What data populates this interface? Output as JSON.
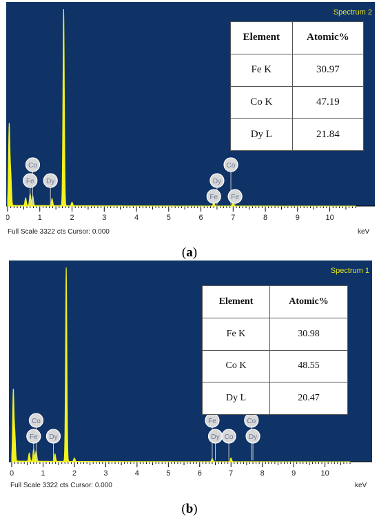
{
  "colors": {
    "plot_bg": "#0f3367",
    "trace": "#f2f21c",
    "spectrum_label": "#e6e61e",
    "element_badge": "#d8d8d8"
  },
  "chart_data": [
    {
      "type": "line",
      "panel_label": "a",
      "spectrum_label": "Spectrum 2",
      "footer_left": "Full Scale 3322 cts Cursor: 0.000",
      "xunit": "keV",
      "xlim": [
        0,
        10.8
      ],
      "xticks": [
        "0",
        "1",
        "2",
        "3",
        "4",
        "5",
        "6",
        "7",
        "8",
        "9",
        "10"
      ],
      "ylim": [
        0,
        3322
      ],
      "peaks": [
        {
          "x": 0.05,
          "y": 1350
        },
        {
          "x": 0.1,
          "y": 500
        },
        {
          "x": 0.56,
          "y": 130
        },
        {
          "x": 0.7,
          "y": 200
        },
        {
          "x": 0.78,
          "y": 170
        },
        {
          "x": 1.38,
          "y": 120
        },
        {
          "x": 1.74,
          "y": 3322
        },
        {
          "x": 2.0,
          "y": 60
        },
        {
          "x": 6.4,
          "y": 55
        },
        {
          "x": 7.0,
          "y": 60
        }
      ],
      "element_markers": [
        {
          "label": "Co",
          "x": 0.78,
          "level": 2
        },
        {
          "label": "Fe",
          "x": 0.7,
          "level": 1
        },
        {
          "label": "Dy",
          "x": 1.33,
          "level": 1
        },
        {
          "label": "Dy",
          "x": 6.5,
          "level": 1
        },
        {
          "label": "Co",
          "x": 6.93,
          "level": 2
        },
        {
          "label": "Fe",
          "x": 6.4,
          "level": 0
        },
        {
          "label": "Fe",
          "x": 7.06,
          "level": 0
        }
      ],
      "table": {
        "headers": [
          "Element",
          "Atomic%"
        ],
        "rows": [
          [
            "Fe K",
            "30.97"
          ],
          [
            "Co K",
            "47.19"
          ],
          [
            "Dy L",
            "21.84"
          ]
        ]
      }
    },
    {
      "type": "line",
      "panel_label": "b",
      "spectrum_label": "Spectrum 1",
      "footer_left": "Full Scale 3322 cts Cursor: 0.000",
      "xunit": "keV",
      "xlim": [
        0,
        10.8
      ],
      "xticks": [
        "0",
        "1",
        "2",
        "3",
        "4",
        "5",
        "6",
        "7",
        "8",
        "9",
        "10"
      ],
      "ylim": [
        0,
        3322
      ],
      "peaks": [
        {
          "x": 0.05,
          "y": 1200
        },
        {
          "x": 0.1,
          "y": 450
        },
        {
          "x": 0.56,
          "y": 140
        },
        {
          "x": 0.7,
          "y": 210
        },
        {
          "x": 0.78,
          "y": 180
        },
        {
          "x": 1.38,
          "y": 130
        },
        {
          "x": 1.74,
          "y": 3322
        },
        {
          "x": 2.0,
          "y": 60
        },
        {
          "x": 6.4,
          "y": 55
        },
        {
          "x": 7.0,
          "y": 65
        }
      ],
      "element_markers": [
        {
          "label": "Co",
          "x": 0.78,
          "level": 2
        },
        {
          "label": "Fe",
          "x": 0.7,
          "level": 1
        },
        {
          "label": "Dy",
          "x": 1.33,
          "level": 1
        },
        {
          "label": "Fe",
          "x": 6.4,
          "level": 2
        },
        {
          "label": "Dy",
          "x": 6.5,
          "level": 1
        },
        {
          "label": "Co",
          "x": 6.93,
          "level": 1
        },
        {
          "label": "Co",
          "x": 7.65,
          "level": 2
        },
        {
          "label": "Dy",
          "x": 7.7,
          "level": 1
        }
      ],
      "table": {
        "headers": [
          "Element",
          "Atomic%"
        ],
        "rows": [
          [
            "Fe K",
            "30.98"
          ],
          [
            "Co K",
            "48.55"
          ],
          [
            "Dy L",
            "20.47"
          ]
        ]
      }
    }
  ]
}
